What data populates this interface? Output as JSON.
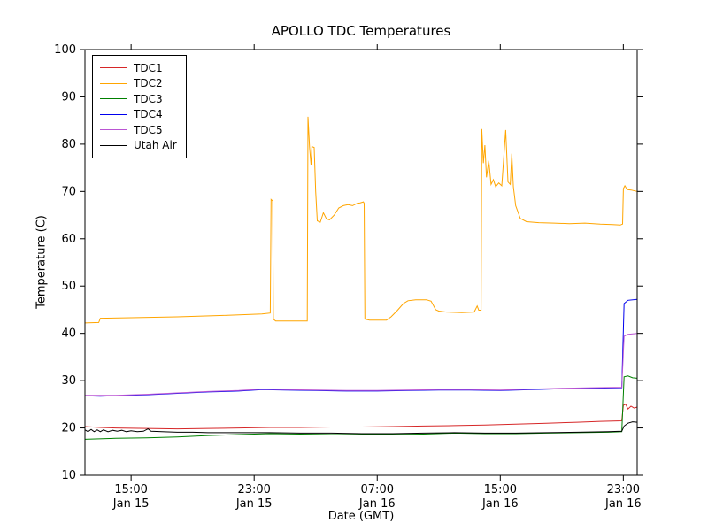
{
  "chart_data": {
    "type": "line",
    "title": "APOLLO TDC Temperatures",
    "xlabel": "Date (GMT)",
    "ylabel": "Temperature (C)",
    "ylim": [
      10,
      100
    ],
    "yticks": [
      10,
      20,
      30,
      40,
      50,
      60,
      70,
      80,
      90,
      100
    ],
    "grid": false,
    "legend_position": "upper left",
    "x_unit": "hours since Jan 15 00:00 GMT",
    "xlim": [
      12.0,
      47.9
    ],
    "xticks": [
      {
        "h": 15,
        "line1": "15:00",
        "line2": "Jan 15"
      },
      {
        "h": 23,
        "line1": "23:00",
        "line2": "Jan 15"
      },
      {
        "h": 31,
        "line1": "07:00",
        "line2": "Jan 16"
      },
      {
        "h": 39,
        "line1": "15:00",
        "line2": "Jan 16"
      },
      {
        "h": 47,
        "line1": "23:00",
        "line2": "Jan 16"
      }
    ],
    "series": [
      {
        "name": "TDC1",
        "color": "#d62728",
        "points": [
          [
            12.0,
            20.3
          ],
          [
            13,
            20.1
          ],
          [
            14,
            20.0
          ],
          [
            16,
            19.9
          ],
          [
            18,
            19.8
          ],
          [
            20,
            19.9
          ],
          [
            22,
            20.0
          ],
          [
            24,
            20.1
          ],
          [
            26,
            20.1
          ],
          [
            28,
            20.2
          ],
          [
            30,
            20.2
          ],
          [
            32,
            20.3
          ],
          [
            34,
            20.4
          ],
          [
            36,
            20.5
          ],
          [
            38,
            20.6
          ],
          [
            40,
            20.8
          ],
          [
            42,
            21.0
          ],
          [
            44,
            21.2
          ],
          [
            45.5,
            21.4
          ],
          [
            46.9,
            21.5
          ],
          [
            47.0,
            24.8
          ],
          [
            47.15,
            25.0
          ],
          [
            47.3,
            24.0
          ],
          [
            47.5,
            24.6
          ],
          [
            47.7,
            24.2
          ],
          [
            47.9,
            24.4
          ]
        ]
      },
      {
        "name": "TDC2",
        "color": "#ffa500",
        "points": [
          [
            12.0,
            42.2
          ],
          [
            12.9,
            42.3
          ],
          [
            13.0,
            43.2
          ],
          [
            15,
            43.3
          ],
          [
            18,
            43.5
          ],
          [
            21,
            43.8
          ],
          [
            23.5,
            44.1
          ],
          [
            24.05,
            44.3
          ],
          [
            24.1,
            68.3
          ],
          [
            24.2,
            68.0
          ],
          [
            24.25,
            43.0
          ],
          [
            24.4,
            42.6
          ],
          [
            25.5,
            42.6
          ],
          [
            26.45,
            42.6
          ],
          [
            26.5,
            85.8
          ],
          [
            26.6,
            79.3
          ],
          [
            26.7,
            75.5
          ],
          [
            26.75,
            79.5
          ],
          [
            26.9,
            79.3
          ],
          [
            27.0,
            70.0
          ],
          [
            27.1,
            63.8
          ],
          [
            27.3,
            63.5
          ],
          [
            27.5,
            65.5
          ],
          [
            27.7,
            64.2
          ],
          [
            27.9,
            64.0
          ],
          [
            28.2,
            65.0
          ],
          [
            28.5,
            66.5
          ],
          [
            28.8,
            67.0
          ],
          [
            29.1,
            67.2
          ],
          [
            29.4,
            67.0
          ],
          [
            29.7,
            67.5
          ],
          [
            29.9,
            67.6
          ],
          [
            30.1,
            67.8
          ],
          [
            30.15,
            67.5
          ],
          [
            30.2,
            43.0
          ],
          [
            30.5,
            42.8
          ],
          [
            31.6,
            42.8
          ],
          [
            31.9,
            43.5
          ],
          [
            32.3,
            44.8
          ],
          [
            32.7,
            46.3
          ],
          [
            33.0,
            46.9
          ],
          [
            33.5,
            47.1
          ],
          [
            34.2,
            47.1
          ],
          [
            34.5,
            46.8
          ],
          [
            34.8,
            45.0
          ],
          [
            35.0,
            44.7
          ],
          [
            35.5,
            44.5
          ],
          [
            36.5,
            44.4
          ],
          [
            37.3,
            44.5
          ],
          [
            37.5,
            45.8
          ],
          [
            37.6,
            44.9
          ],
          [
            37.75,
            44.9
          ],
          [
            37.8,
            83.2
          ],
          [
            37.9,
            76.0
          ],
          [
            38.0,
            79.8
          ],
          [
            38.1,
            73.0
          ],
          [
            38.25,
            76.5
          ],
          [
            38.4,
            71.5
          ],
          [
            38.55,
            72.5
          ],
          [
            38.7,
            71.0
          ],
          [
            38.9,
            71.8
          ],
          [
            39.1,
            71.2
          ],
          [
            39.35,
            83.0
          ],
          [
            39.5,
            72.0
          ],
          [
            39.65,
            71.5
          ],
          [
            39.75,
            78.0
          ],
          [
            39.85,
            71.0
          ],
          [
            40.0,
            67.0
          ],
          [
            40.3,
            64.3
          ],
          [
            40.7,
            63.6
          ],
          [
            41.5,
            63.4
          ],
          [
            42.5,
            63.3
          ],
          [
            43.5,
            63.2
          ],
          [
            44.5,
            63.3
          ],
          [
            45.5,
            63.1
          ],
          [
            46.3,
            63.0
          ],
          [
            46.8,
            62.9
          ],
          [
            46.95,
            63.1
          ],
          [
            47.0,
            70.6
          ],
          [
            47.1,
            71.2
          ],
          [
            47.25,
            70.4
          ],
          [
            47.5,
            70.3
          ],
          [
            47.9,
            70.0
          ]
        ]
      },
      {
        "name": "TDC3",
        "color": "#008000",
        "points": [
          [
            12.0,
            17.6
          ],
          [
            14,
            17.8
          ],
          [
            16,
            17.9
          ],
          [
            18,
            18.1
          ],
          [
            20,
            18.4
          ],
          [
            22,
            18.6
          ],
          [
            24,
            18.8
          ],
          [
            26,
            18.7
          ],
          [
            28,
            18.6
          ],
          [
            30,
            18.6
          ],
          [
            32,
            18.6
          ],
          [
            34,
            18.7
          ],
          [
            36,
            18.9
          ],
          [
            38,
            18.8
          ],
          [
            40,
            18.8
          ],
          [
            42,
            18.9
          ],
          [
            44,
            19.0
          ],
          [
            46,
            19.1
          ],
          [
            46.9,
            19.2
          ],
          [
            47.05,
            30.8
          ],
          [
            47.3,
            31.0
          ],
          [
            47.6,
            30.6
          ],
          [
            47.9,
            30.5
          ]
        ]
      },
      {
        "name": "TDC4",
        "color": "#0000ee",
        "points": [
          [
            12.0,
            26.8
          ],
          [
            13,
            26.7
          ],
          [
            14,
            26.8
          ],
          [
            16,
            27.0
          ],
          [
            18,
            27.3
          ],
          [
            20,
            27.6
          ],
          [
            22,
            27.8
          ],
          [
            23.5,
            28.1
          ],
          [
            25,
            28.0
          ],
          [
            27,
            27.9
          ],
          [
            29,
            27.8
          ],
          [
            31,
            27.8
          ],
          [
            33,
            27.9
          ],
          [
            35,
            28.0
          ],
          [
            37,
            28.0
          ],
          [
            39,
            27.9
          ],
          [
            41,
            28.1
          ],
          [
            43,
            28.3
          ],
          [
            45,
            28.4
          ],
          [
            46.9,
            28.5
          ],
          [
            47.05,
            46.3
          ],
          [
            47.3,
            47.0
          ],
          [
            47.9,
            47.2
          ]
        ]
      },
      {
        "name": "TDC5",
        "color": "#ba55d3",
        "points": [
          [
            12.0,
            26.9
          ],
          [
            14,
            26.9
          ],
          [
            16,
            27.1
          ],
          [
            18,
            27.4
          ],
          [
            20,
            27.7
          ],
          [
            22,
            27.9
          ],
          [
            23.5,
            28.2
          ],
          [
            25,
            28.1
          ],
          [
            27,
            28.0
          ],
          [
            29,
            27.9
          ],
          [
            31,
            27.9
          ],
          [
            33,
            28.0
          ],
          [
            35,
            28.1
          ],
          [
            37,
            28.1
          ],
          [
            39,
            28.0
          ],
          [
            41,
            28.2
          ],
          [
            43,
            28.4
          ],
          [
            45,
            28.5
          ],
          [
            46.9,
            28.6
          ],
          [
            47.05,
            39.4
          ],
          [
            47.3,
            39.8
          ],
          [
            47.9,
            40.0
          ]
        ]
      },
      {
        "name": "Utah Air",
        "color": "#000000",
        "points": [
          [
            12.0,
            19.6
          ],
          [
            12.2,
            19.2
          ],
          [
            12.4,
            19.7
          ],
          [
            12.6,
            19.2
          ],
          [
            12.8,
            19.6
          ],
          [
            13.0,
            19.2
          ],
          [
            13.2,
            19.6
          ],
          [
            13.5,
            19.2
          ],
          [
            13.8,
            19.5
          ],
          [
            14.1,
            19.3
          ],
          [
            14.4,
            19.5
          ],
          [
            14.7,
            19.2
          ],
          [
            15.0,
            19.4
          ],
          [
            15.4,
            19.2
          ],
          [
            15.8,
            19.3
          ],
          [
            16.1,
            19.8
          ],
          [
            16.3,
            19.3
          ],
          [
            17,
            19.2
          ],
          [
            18,
            19.1
          ],
          [
            19,
            19.1
          ],
          [
            20,
            19.0
          ],
          [
            22,
            19.0
          ],
          [
            24,
            19.0
          ],
          [
            26,
            18.9
          ],
          [
            28,
            18.9
          ],
          [
            30,
            18.8
          ],
          [
            32,
            18.8
          ],
          [
            34,
            18.9
          ],
          [
            36,
            19.0
          ],
          [
            38,
            18.9
          ],
          [
            40,
            18.9
          ],
          [
            42,
            19.0
          ],
          [
            44,
            19.1
          ],
          [
            46,
            19.2
          ],
          [
            46.9,
            19.3
          ],
          [
            47.05,
            20.4
          ],
          [
            47.3,
            21.0
          ],
          [
            47.6,
            21.3
          ],
          [
            47.9,
            21.2
          ]
        ]
      }
    ]
  }
}
